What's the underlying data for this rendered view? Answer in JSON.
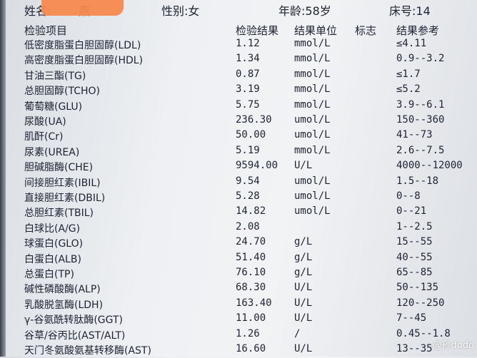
{
  "patient": {
    "name_label": "姓名:",
    "name_visible": "燕",
    "gender": "性别:女",
    "age": "年龄:58岁",
    "bed": "床号:14"
  },
  "columns": {
    "item": "检验项目",
    "result": "检验结果",
    "unit": "结果单位",
    "flag": "标志",
    "reference": "结果参考"
  },
  "rows": [
    {
      "item": "低密度脂蛋白胆固醇(LDL)",
      "result": "1.12",
      "unit": "mmol/L",
      "flag": "",
      "reference": "≤4.11"
    },
    {
      "item": "高密度脂蛋白胆固醇(HDL)",
      "result": "1.34",
      "unit": "mmol/L",
      "flag": "",
      "reference": "0.9--3.2"
    },
    {
      "item": "甘油三酯(TG)",
      "result": "0.87",
      "unit": "mmol/L",
      "flag": "",
      "reference": "≤1.7"
    },
    {
      "item": "总胆固醇(TCHO)",
      "result": "3.19",
      "unit": "mmol/L",
      "flag": "",
      "reference": "≤5.2"
    },
    {
      "item": "葡萄糖(GLU)",
      "result": "5.75",
      "unit": "mmol/L",
      "flag": "",
      "reference": "3.9--6.1"
    },
    {
      "item": "尿酸(UA)",
      "result": "236.30",
      "unit": "umol/L",
      "flag": "",
      "reference": "150--360"
    },
    {
      "item": "肌酐(Cr)",
      "result": "50.00",
      "unit": "umol/L",
      "flag": "",
      "reference": "41--73"
    },
    {
      "item": "尿素(UREA)",
      "result": "5.19",
      "unit": "mmol/L",
      "flag": "",
      "reference": "2.6--7.5"
    },
    {
      "item": "胆碱脂酶(CHE)",
      "result": "9594.00",
      "unit": "U/L",
      "flag": "",
      "reference": "4000--12000"
    },
    {
      "item": "间接胆红素(IBIL)",
      "result": "9.54",
      "unit": "umol/L",
      "flag": "",
      "reference": "1.5--18"
    },
    {
      "item": "直接胆红素(DBIL)",
      "result": "5.28",
      "unit": "umol/L",
      "flag": "",
      "reference": "0--8"
    },
    {
      "item": "总胆红素(TBIL)",
      "result": "14.82",
      "unit": "umol/L",
      "flag": "",
      "reference": "0--21"
    },
    {
      "item": "白球比(A/G)",
      "result": "2.08",
      "unit": "",
      "flag": "",
      "reference": "1--2.5"
    },
    {
      "item": "球蛋白(GLO)",
      "result": "24.70",
      "unit": "g/L",
      "flag": "",
      "reference": "15--55"
    },
    {
      "item": "白蛋白(ALB)",
      "result": "51.40",
      "unit": "g/L",
      "flag": "",
      "reference": "40--55"
    },
    {
      "item": "总蛋白(TP)",
      "result": "76.10",
      "unit": "g/L",
      "flag": "",
      "reference": "65--85"
    },
    {
      "item": "碱性磷酸酶(ALP)",
      "result": "68.30",
      "unit": "U/L",
      "flag": "",
      "reference": "50--135"
    },
    {
      "item": "乳酸脱氢酶(LDH)",
      "result": "163.40",
      "unit": "U/L",
      "flag": "",
      "reference": "120--250"
    },
    {
      "item": "γ-谷氨酰转肽酶(GGT)",
      "result": "11.00",
      "unit": "U/L",
      "flag": "",
      "reference": "7--45"
    },
    {
      "item": "谷草/谷丙比(AST/ALT)",
      "result": "1.26",
      "unit": "/",
      "flag": "",
      "reference": "0.45--1.8"
    },
    {
      "item": "天门冬氨酸氨基转移酶(AST)",
      "result": "16.60",
      "unit": "U/L",
      "flag": "",
      "reference": "13--35"
    }
  ],
  "watermark": "@孙dodo"
}
